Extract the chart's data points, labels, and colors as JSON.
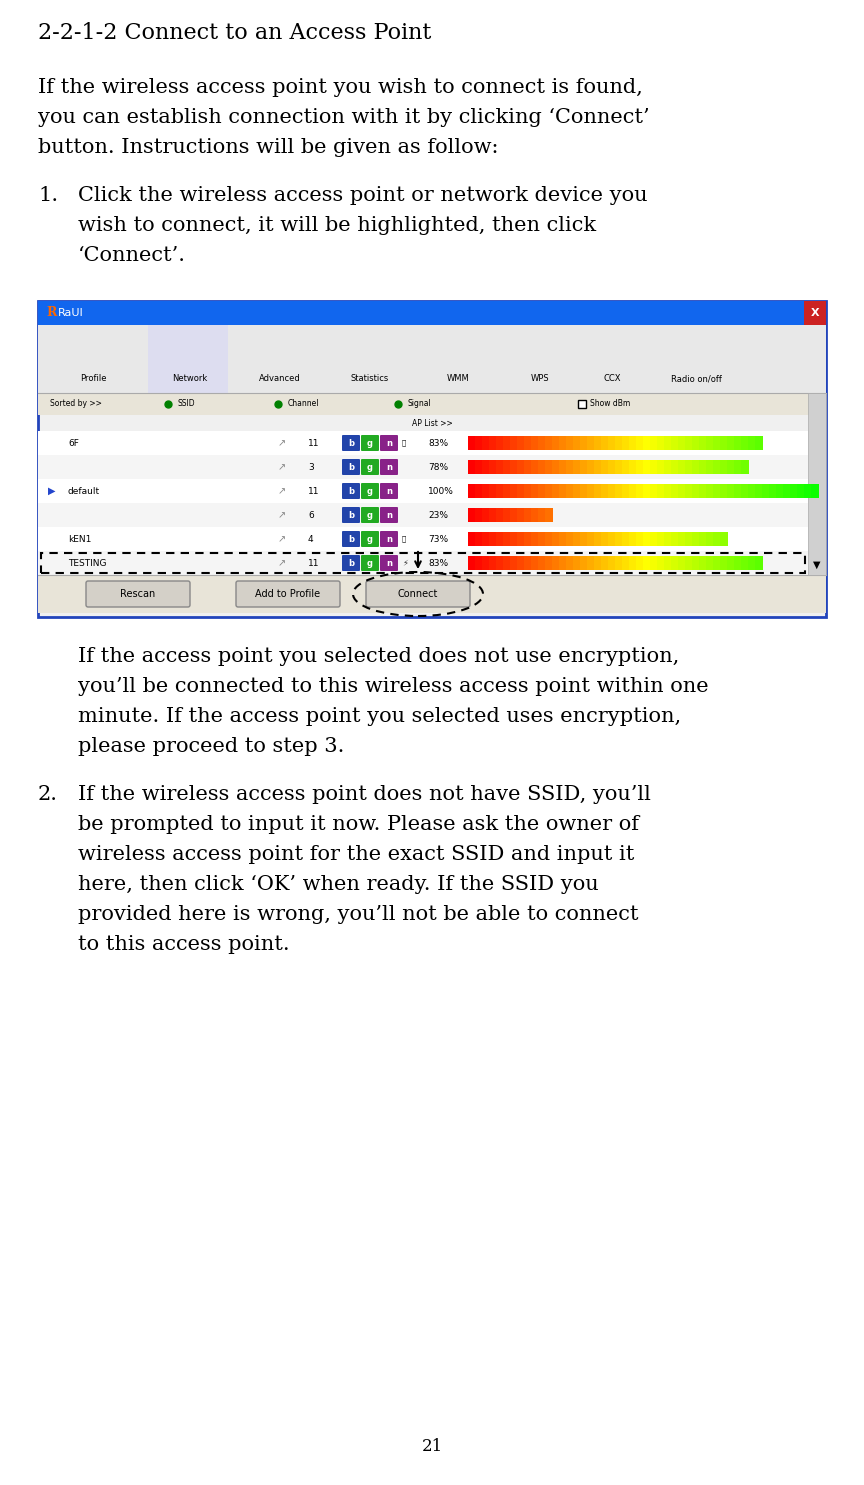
{
  "title": "2-2-1-2 Connect to an Access Point",
  "bg_color": "#ffffff",
  "text_color": "#000000",
  "font_size_title": 16,
  "font_size_body": 14.5,
  "page_number": "21",
  "intro_text": "If the wireless access point you wish to connect is found, you can establish connection with it by clicking ‘Connect’ button. Instructions will be given as follow:",
  "item1_main": "Click the wireless access point or network device you wish to connect, it will be highlighted, then click ‘Connect’.",
  "item1_sub": "If the access point you selected does not use encryption, you’ll be connected to this wireless access point within one minute. If the access point you selected uses encryption, please proceed to step 3.",
  "item2_main": "If the wireless access point does not have SSID, you’ll be prompted to input it now. Please ask the owner of wireless access point for the exact SSID and input it here, then click ‘OK’ when ready. If the SSID you provided here is wrong, you’ll not be able to connect to this access point.",
  "rows": [
    {
      "name": "6F",
      "ch": "11",
      "sig": 83,
      "arrow": false,
      "dotted": false,
      "lock": true,
      "wifi_icon": false
    },
    {
      "name": "",
      "ch": "3",
      "sig": 78,
      "arrow": false,
      "dotted": false,
      "lock": false,
      "wifi_icon": false
    },
    {
      "name": "default",
      "ch": "11",
      "sig": 100,
      "arrow": true,
      "dotted": false,
      "lock": false,
      "wifi_icon": false
    },
    {
      "name": "",
      "ch": "6",
      "sig": 23,
      "arrow": false,
      "dotted": false,
      "lock": false,
      "wifi_icon": false
    },
    {
      "name": "kEN1",
      "ch": "4",
      "sig": 73,
      "arrow": false,
      "dotted": false,
      "lock": true,
      "wifi_icon": false
    },
    {
      "name": "TESTING",
      "ch": "11",
      "sig": 83,
      "arrow": false,
      "dotted": true,
      "lock": false,
      "wifi_icon": true
    }
  ],
  "toolbar_items": [
    "Profile",
    "Network",
    "Advanced",
    "Statistics",
    "WMM",
    "WPS",
    "CCX",
    "Radio on/off"
  ],
  "title_bar_color": "#1166ee",
  "x_btn_color": "#cc2222",
  "toolbar_bg": "#e8e8e8",
  "net_tab_bg": "#ddddf0",
  "sort_bar_bg": "#e8e4d8",
  "btn_bg": "#e8e4d8",
  "win_border_color": "#2244bb",
  "row_bg_odd": "#f8f8f8",
  "row_bg_even": "#ffffff",
  "row_bg_testing": "#ffffff"
}
